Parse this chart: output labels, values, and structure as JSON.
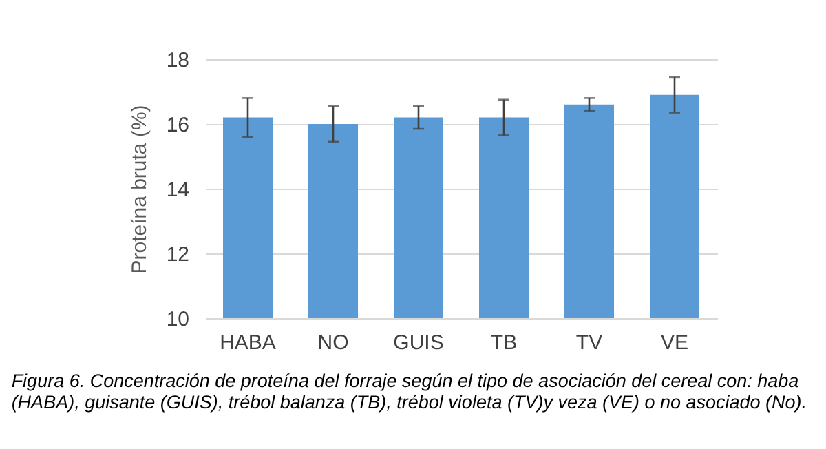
{
  "chart_data": {
    "type": "bar",
    "categories": [
      "HABA",
      "NO",
      "GUIS",
      "TB",
      "TV",
      "VE"
    ],
    "values": [
      16.2,
      16.0,
      16.2,
      16.2,
      16.6,
      16.9
    ],
    "errors": [
      0.6,
      0.55,
      0.35,
      0.55,
      0.2,
      0.55
    ],
    "color": "#5b9bd5",
    "ylabel": "Proteína bruta (%)",
    "ylim": [
      10,
      18
    ],
    "yticks": [
      10,
      12,
      14,
      16,
      18
    ],
    "grid": "y",
    "annotations": [
      "Figura 6. Concentración de proteína del forraje según el tipo de asociación del cereal con: haba (HABA), guisante (GUIS), trébol balanza (TB), trébol violeta (TV)y veza (VE) o no asociado (No)."
    ]
  }
}
